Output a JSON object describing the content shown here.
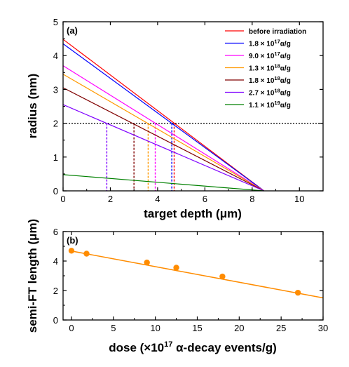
{
  "chart_data": [
    {
      "type": "line",
      "panel_label": "(a)",
      "xlabel": "target depth (μm)",
      "ylabel": "radius (nm)",
      "xlim": [
        0,
        11
      ],
      "ylim": [
        0,
        5
      ],
      "x_ticks": [
        "0",
        "2",
        "4",
        "6",
        "8",
        "10"
      ],
      "y_ticks": [
        "0",
        "1",
        "2",
        "3",
        "4",
        "5"
      ],
      "legend_position": "top-right",
      "series": [
        {
          "name": "before irradiation",
          "color": "#ff0000",
          "x": [
            0,
            8.5
          ],
          "y": [
            4.48,
            0
          ],
          "intercept_x": 4.7
        },
        {
          "name_prefix": "1.8 × 10",
          "exp": "17",
          "name_suffix": "α/g",
          "color": "#0000ff",
          "x": [
            0,
            8.5
          ],
          "y": [
            4.35,
            0
          ],
          "intercept_x": 4.6
        },
        {
          "name_prefix": "9.0 × 10",
          "exp": "17",
          "name_suffix": "α/g",
          "color": "#ff00ff",
          "x": [
            0,
            8.5
          ],
          "y": [
            3.7,
            0
          ],
          "intercept_x": 3.9
        },
        {
          "name_prefix": "1.3 × 10",
          "exp": "18",
          "name_suffix": "α/g",
          "color": "#ff9900",
          "x": [
            0,
            8.5
          ],
          "y": [
            3.45,
            0
          ],
          "intercept_x": 3.6
        },
        {
          "name_prefix": "1.8 × 10",
          "exp": "18",
          "name_suffix": "α/g",
          "color": "#800000",
          "x": [
            0,
            8.5
          ],
          "y": [
            3.05,
            0
          ],
          "intercept_x": 3.0
        },
        {
          "name_prefix": "2.7 × 10",
          "exp": "18",
          "name_suffix": "α/g",
          "color": "#7f00ff",
          "x": [
            0,
            8.5
          ],
          "y": [
            2.55,
            0
          ],
          "intercept_x": 1.85
        },
        {
          "name_prefix": "1.1 × 10",
          "exp": "19",
          "name_suffix": "α/g",
          "color": "#008000",
          "x": [
            0,
            8.5
          ],
          "y": [
            0.48,
            0
          ]
        }
      ],
      "reference_line": {
        "y": 2,
        "style": "dotted",
        "color": "#000000"
      }
    },
    {
      "type": "scatter",
      "panel_label": "(b)",
      "xlabel_prefix": "dose (×10",
      "xlabel_exp": "17",
      "xlabel_suffix": " α-decay events/g)",
      "ylabel": "semi-FT length (μm)",
      "xlim": [
        -1,
        30
      ],
      "ylim": [
        0,
        6
      ],
      "x_ticks": [
        "0",
        "5",
        "10",
        "15",
        "20",
        "25",
        "30"
      ],
      "y_ticks": [
        "0",
        "2",
        "4",
        "6"
      ],
      "color": "#ff8c00",
      "points": {
        "x": [
          0,
          1.8,
          9.0,
          12.5,
          18,
          27
        ],
        "y": [
          4.7,
          4.5,
          3.9,
          3.55,
          2.95,
          1.85
        ]
      },
      "fit_line": {
        "x": [
          0,
          30
        ],
        "y": [
          4.68,
          1.5
        ]
      }
    }
  ]
}
